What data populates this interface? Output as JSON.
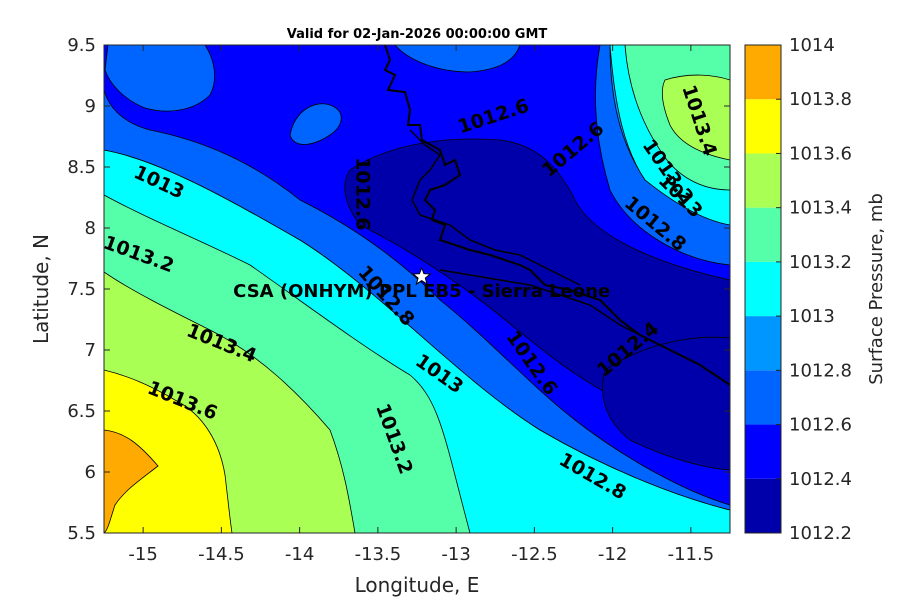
{
  "title": "Valid for 02-Jan-2026 00:00:00 GMT",
  "x_axis": {
    "label": "Longitude, E",
    "range": [
      -15.25,
      -11.25
    ],
    "ticks": [
      -15,
      -14.5,
      -14,
      -13.5,
      -13,
      -12.5,
      -12,
      -11.5
    ],
    "tick_labels": [
      "-15",
      "-14.5",
      "-14",
      "-13.5",
      "-13",
      "-12.5",
      "-12",
      "-11.5"
    ]
  },
  "y_axis": {
    "label": "Latitude, N",
    "range": [
      5.5,
      9.5
    ],
    "ticks": [
      5.5,
      6,
      6.5,
      7,
      7.5,
      8,
      8.5,
      9,
      9.5
    ],
    "tick_labels": [
      "5.5",
      "6",
      "6.5",
      "7",
      "7.5",
      "8",
      "8.5",
      "9",
      "9.5"
    ]
  },
  "colorbar": {
    "label": "Surface Pressure, mb",
    "levels": [
      1012.2,
      1012.4,
      1012.6,
      1012.8,
      1013,
      1013.2,
      1013.4,
      1013.6,
      1013.8,
      1014
    ],
    "tick_labels": [
      "1012.2",
      "1012.4",
      "1012.6",
      "1012.8",
      "1013",
      "1013.2",
      "1013.4",
      "1013.6",
      "1013.8",
      "1014"
    ],
    "colors": [
      "#0000aa",
      "#0000ff",
      "#0064ff",
      "#0096ff",
      "#00ffff",
      "#55ffaa",
      "#aaff55",
      "#ffff00",
      "#ffaa00",
      "#ff5500"
    ]
  },
  "contour_labels": [
    {
      "text": "1012.6",
      "lon": -12.76,
      "lat": 8.91
    },
    {
      "text": "1012.6",
      "lon": -12.25,
      "lat": 8.64
    },
    {
      "text": "1012.6",
      "lon": -13.6,
      "lat": 8.28
    },
    {
      "text": "1013",
      "lon": -14.9,
      "lat": 8.37
    },
    {
      "text": "1013.2",
      "lon": -15.03,
      "lat": 7.78
    },
    {
      "text": "1012.8",
      "lon": -13.45,
      "lat": 7.44
    },
    {
      "text": "1013.4",
      "lon": -14.5,
      "lat": 7.05
    },
    {
      "text": "1013",
      "lon": -13.11,
      "lat": 6.8
    },
    {
      "text": "1012.6",
      "lon": -12.52,
      "lat": 6.89
    },
    {
      "text": "1012.4",
      "lon": -11.9,
      "lat": 7.0
    },
    {
      "text": "1013.6",
      "lon": -14.75,
      "lat": 6.58
    },
    {
      "text": "1013.2",
      "lon": -13.4,
      "lat": 6.27
    },
    {
      "text": "1012.8",
      "lon": -12.13,
      "lat": 5.96
    },
    {
      "text": "1013.4",
      "lon": -11.45,
      "lat": 8.88
    },
    {
      "text": "1013.2",
      "lon": -11.65,
      "lat": 8.46
    },
    {
      "text": "1013",
      "lon": -11.57,
      "lat": 8.26
    },
    {
      "text": "1012.8",
      "lon": -11.73,
      "lat": 8.03
    }
  ],
  "site": {
    "name": "CSA (ONHYM) PPL EB5 - Sierra Leone",
    "lon": -13.22,
    "lat": 7.6
  }
}
